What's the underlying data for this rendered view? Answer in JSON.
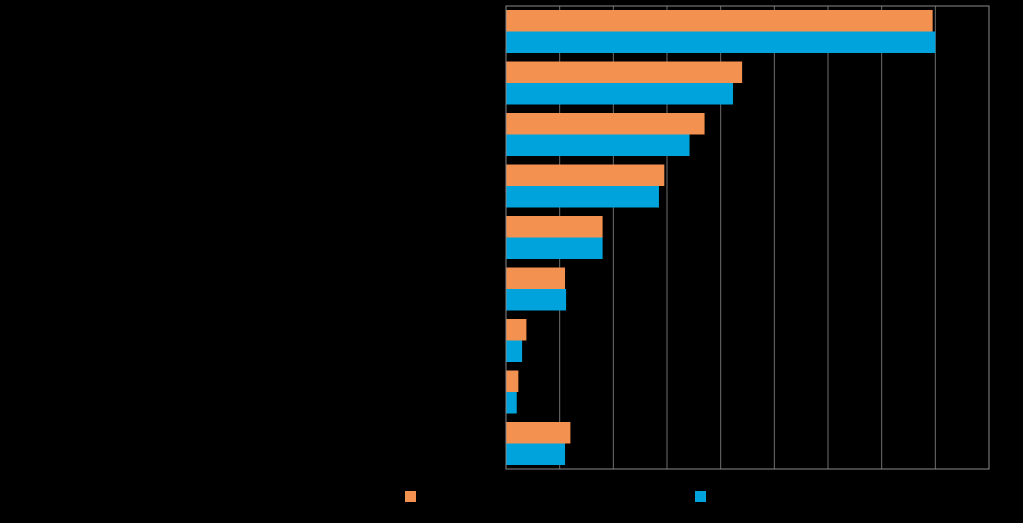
{
  "chart_data": {
    "type": "bar",
    "orientation": "horizontal",
    "categories": [
      "",
      "",
      "",
      "",
      "",
      "",
      "",
      "",
      ""
    ],
    "series": [
      {
        "name": "",
        "color": "#F39150",
        "values": [
          79.5,
          44,
          37,
          29.5,
          18,
          11,
          3.8,
          2.3,
          12
        ]
      },
      {
        "name": "",
        "color": "#00A3DC",
        "values": [
          80,
          42.3,
          34.2,
          28.5,
          18,
          11.2,
          3,
          2,
          11
        ]
      }
    ],
    "xlim": [
      0,
      90
    ],
    "x_grid_step": 10,
    "grid": true,
    "legend": "bottom",
    "title": "",
    "xlabel": "",
    "ylabel": ""
  }
}
